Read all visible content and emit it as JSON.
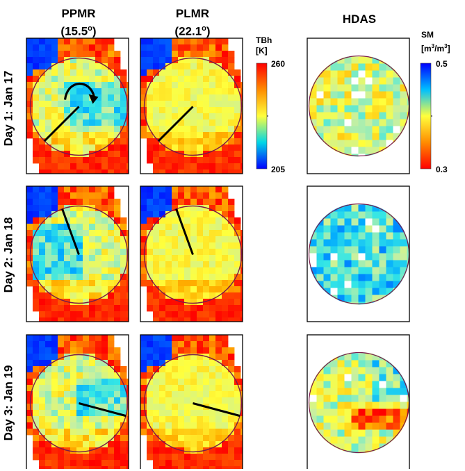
{
  "columns": {
    "ppmr": {
      "title": "PPMR",
      "angle": "(15.5",
      "angle_sup": "o",
      "angle_close": ")"
    },
    "plmr": {
      "title": "PLMR",
      "angle": "(22.1",
      "angle_sup": "o",
      "angle_close": ")"
    },
    "hdas": {
      "title": "HDAS"
    }
  },
  "rows": [
    {
      "label": "Day 1: Jan 17",
      "line_angle_deg": 225
    },
    {
      "label": "Day 2: Jan 18",
      "line_angle_deg": 340
    },
    {
      "label": "Day 3: Jan 19",
      "line_angle_deg": 105
    }
  ],
  "colorbars": {
    "tbh": {
      "title": "TBh",
      "units": "[K]",
      "max": "260",
      "min": "205",
      "colors": [
        "#ff0000",
        "#ff8c00",
        "#ffff3c",
        "#00d6e6",
        "#0000ff"
      ]
    },
    "sm": {
      "title": "SM",
      "units_pre": "[m",
      "units_sup1": "3",
      "units_mid": "/m",
      "units_sup2": "3",
      "units_post": "]",
      "max": "0.5",
      "min": "0.3",
      "colors": [
        "#0000ff",
        "#00bfff",
        "#ffff3c",
        "#ff8c00",
        "#ff0000"
      ]
    }
  },
  "panel_colors": {
    "site_circle": "#7a1a4a",
    "heading_line": "#000000",
    "arrow": "#000000"
  }
}
